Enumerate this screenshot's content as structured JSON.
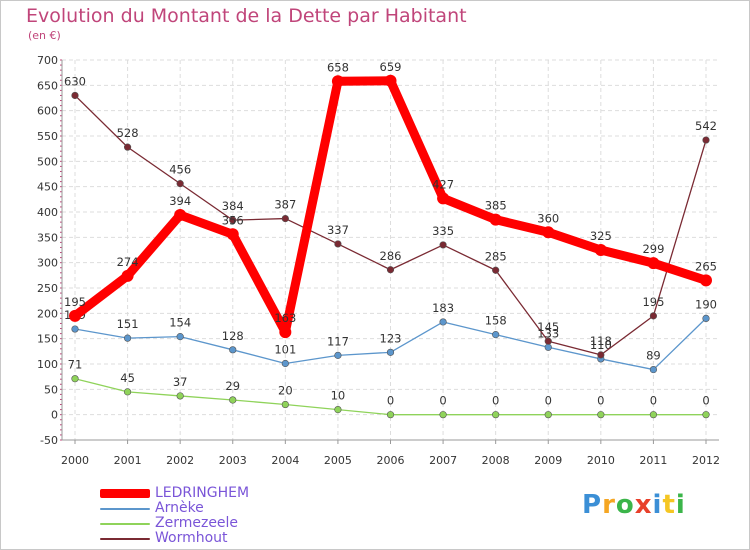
{
  "title": "Evolution du Montant de la Dette par Habitant",
  "subtitle": "(en €)",
  "logo": {
    "text": "Proxiti",
    "colors": [
      "#3b8fd6",
      "#f5a623",
      "#3bb54a",
      "#e8402b",
      "#3b8fd6",
      "#f5c623",
      "#3bb54a"
    ]
  },
  "chart_data": {
    "type": "line",
    "x": [
      "2000",
      "2001",
      "2002",
      "2003",
      "2004",
      "2005",
      "2006",
      "2007",
      "2008",
      "2009",
      "2010",
      "2011",
      "2012"
    ],
    "ylim": [
      -50,
      700
    ],
    "yticks": [
      -50,
      0,
      50,
      100,
      150,
      200,
      250,
      300,
      350,
      400,
      450,
      500,
      550,
      600,
      650,
      700
    ],
    "grid": true,
    "legend_position": "bottom-left",
    "series": [
      {
        "name": "Zermezeele",
        "color": "#8fd35a",
        "values": [
          71,
          45,
          37,
          29,
          20,
          10,
          0,
          0,
          0,
          0,
          0,
          0,
          0
        ]
      },
      {
        "name": "Arnèke",
        "color": "#5c96cc",
        "values": [
          169,
          151,
          154,
          128,
          101,
          117,
          123,
          183,
          158,
          133,
          110,
          89,
          190
        ]
      },
      {
        "name": "Wormhout",
        "color": "#7a2a33",
        "values": [
          630,
          528,
          456,
          384,
          387,
          337,
          286,
          335,
          285,
          145,
          118,
          195,
          542
        ]
      },
      {
        "name": "LEDRINGHEM",
        "color": "#ff0000",
        "values": [
          195,
          274,
          394,
          356,
          163,
          658,
          659,
          427,
          385,
          360,
          325,
          299,
          265
        ]
      }
    ],
    "legend_order": [
      "LEDRINGHEM",
      "Arnèke",
      "Zermezeele",
      "Wormhout"
    ],
    "xlabel": "",
    "ylabel": ""
  }
}
